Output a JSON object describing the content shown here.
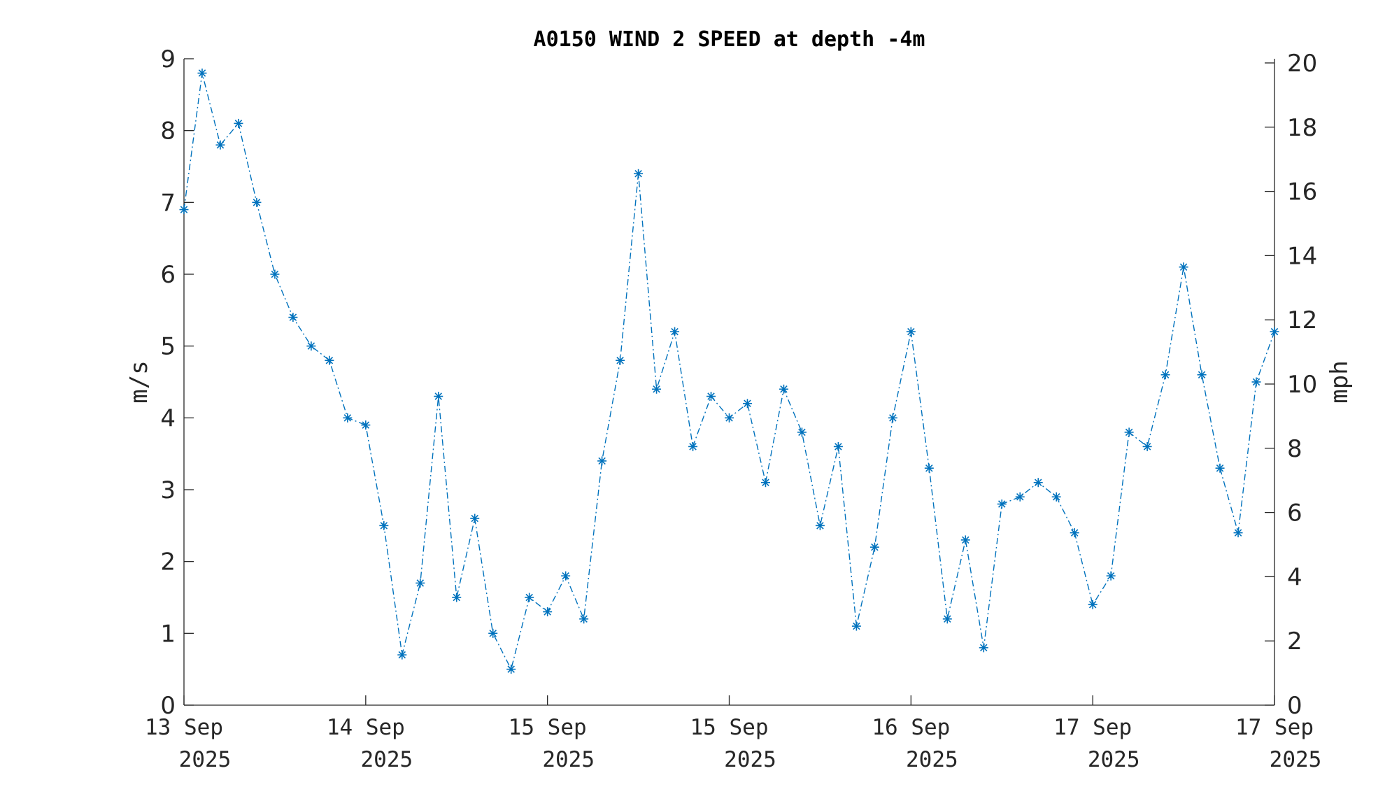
{
  "colors": {
    "series": "#0072BD",
    "axis": "#262626",
    "background": "#ffffff"
  },
  "chart_data": {
    "type": "line",
    "title": "A0150 WIND 2 SPEED at depth -4m",
    "ylabel_left": "m/s",
    "ylabel_right": "mph",
    "ylim_left": [
      0,
      9
    ],
    "ylim_right": [
      0,
      20.13
    ],
    "yticks_left": [
      "0",
      "1",
      "2",
      "3",
      "4",
      "5",
      "6",
      "7",
      "8",
      "9"
    ],
    "yticks_right": [
      "0",
      "2",
      "4",
      "6",
      "8",
      "10",
      "12",
      "14",
      "16",
      "18",
      "20"
    ],
    "xlim": [
      0,
      6
    ],
    "xticks": [
      [
        "13 Sep",
        "2025"
      ],
      [
        "14 Sep",
        "2025"
      ],
      [
        "15 Sep",
        "2025"
      ],
      [
        "15 Sep",
        "2025"
      ],
      [
        "16 Sep",
        "2025"
      ],
      [
        "17 Sep",
        "2025"
      ],
      [
        "17 Sep",
        "2025"
      ]
    ],
    "grid": false,
    "marker": "asterisk",
    "line_style": "dash-dot",
    "series": [
      {
        "x": [
          0.0,
          0.1,
          0.2,
          0.3,
          0.4,
          0.5,
          0.6,
          0.7,
          0.8,
          0.9,
          1.0,
          1.1,
          1.2,
          1.3,
          1.4,
          1.5,
          1.6,
          1.7,
          1.8,
          1.9,
          2.0,
          2.1,
          2.2,
          2.3,
          2.4,
          2.5,
          2.6,
          2.7,
          2.8,
          2.9,
          3.0,
          3.1,
          3.2,
          3.3,
          3.4,
          3.5,
          3.6,
          3.7,
          3.8,
          3.9,
          4.0,
          4.1,
          4.2,
          4.3,
          4.4,
          4.5,
          4.6,
          4.7,
          4.8,
          4.9,
          5.0,
          5.1,
          5.2,
          5.3,
          5.4,
          5.5,
          5.6,
          5.7,
          5.8,
          5.9,
          6.0
        ],
        "values": [
          6.9,
          8.8,
          7.8,
          8.1,
          7.0,
          6.0,
          5.4,
          5.0,
          4.8,
          4.0,
          3.9,
          2.5,
          0.7,
          1.7,
          4.3,
          1.5,
          2.6,
          1.0,
          0.5,
          1.5,
          1.3,
          1.8,
          1.2,
          3.4,
          4.8,
          7.4,
          4.4,
          5.2,
          3.6,
          4.3,
          4.0,
          4.2,
          3.1,
          4.4,
          3.8,
          2.5,
          3.6,
          1.1,
          2.2,
          4.0,
          5.2,
          3.3,
          1.2,
          2.3,
          0.8,
          2.8,
          2.9,
          3.1,
          2.9,
          2.4,
          1.4,
          1.8,
          3.8,
          3.6,
          4.6,
          6.1,
          4.6,
          3.3,
          2.4,
          4.5,
          5.2
        ]
      }
    ]
  }
}
